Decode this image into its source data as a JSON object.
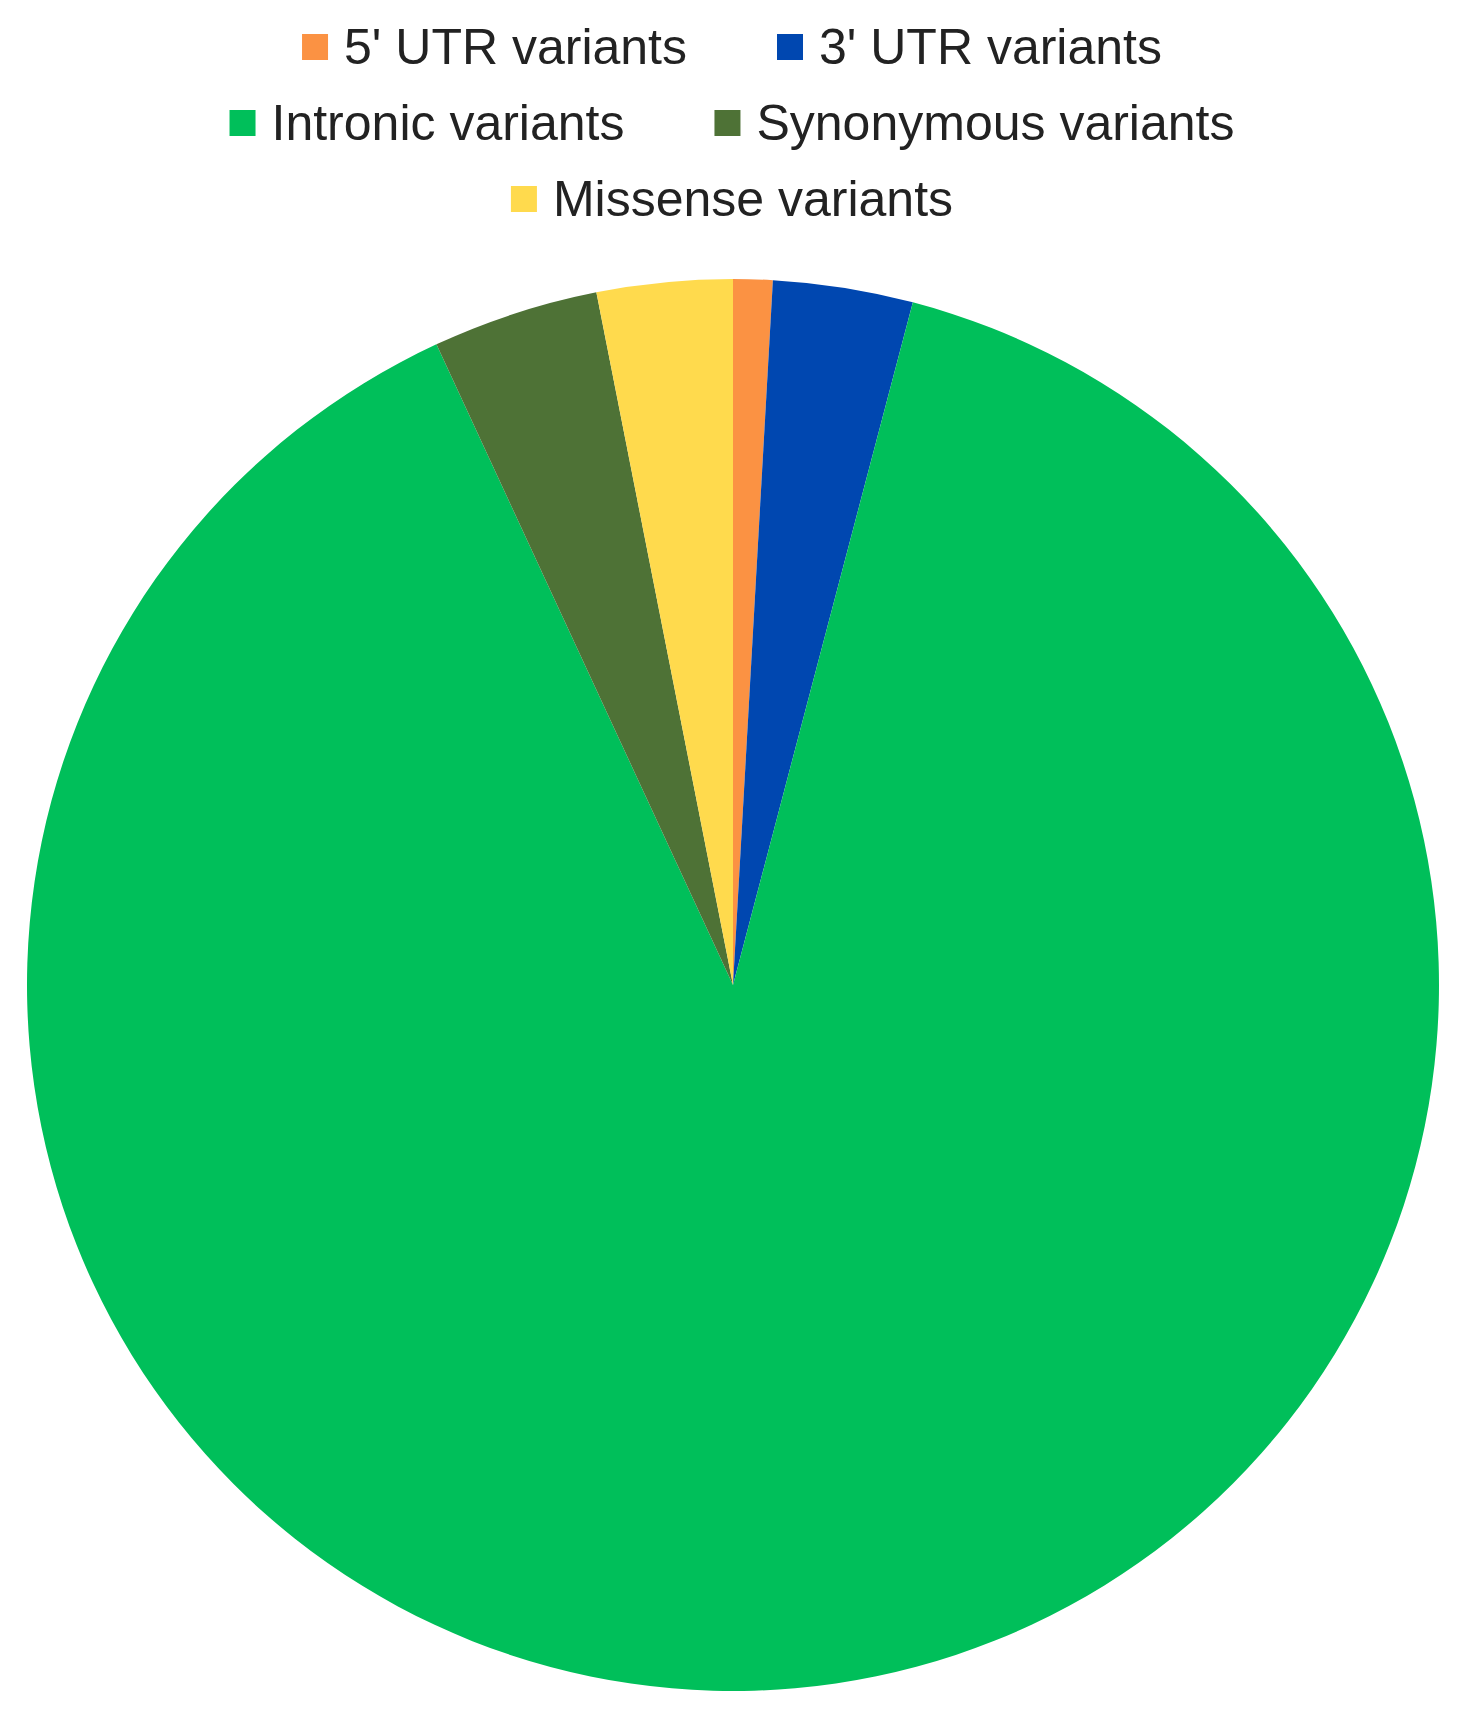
{
  "chart_data": {
    "type": "pie",
    "categories": [
      "5' UTR variants",
      "3' UTR variants",
      "Intronic variants",
      "Synonymous variants",
      "Missense variants"
    ],
    "values": [
      0.9,
      3.2,
      89.0,
      3.8,
      3.1
    ],
    "colors": [
      "#fb9243",
      "#0047b0",
      "#00bf5a",
      "#4e7236",
      "#ffda4d"
    ],
    "legend": "top"
  }
}
